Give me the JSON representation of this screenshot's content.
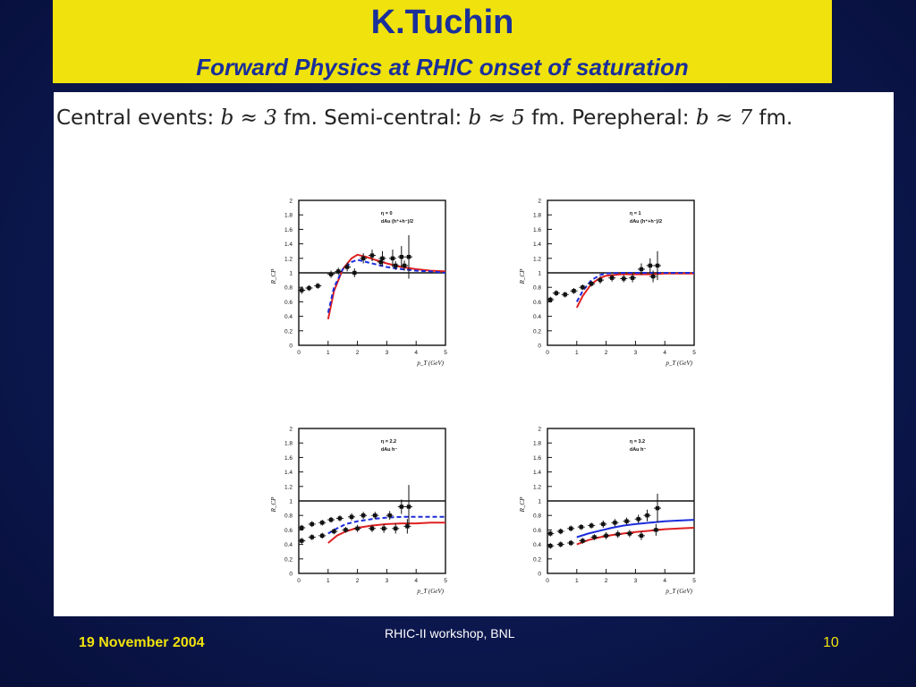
{
  "slide": {
    "title": "K.Tuchin",
    "subtitle": "Forward Physics at RHIC onset of saturation",
    "caption": {
      "p1": "Central events: ",
      "m1": "b ≈ 3",
      "p2": " fm. Semi-central: ",
      "m2": "b ≈ 5",
      "p3": " fm. Perepheral: ",
      "m3": "b ≈ 7",
      "p4": " fm."
    },
    "footer": {
      "date": "19 November 2004",
      "center": "RHIC-II workshop, BNL",
      "page": "10"
    }
  },
  "colors": {
    "title_bg": "#f0e20c",
    "title_text": "#1a2f9a",
    "footer_text": "#f0e20c",
    "background": "#0c1850",
    "red_curve": "#e02020",
    "blue_curve": "#1c2cdc"
  },
  "chart_data": [
    {
      "type": "scatter",
      "panel": "top-left",
      "legend": [
        "η = 0",
        "dAu (h⁺+h⁻)/2"
      ],
      "ylabel": "R_CP",
      "xlabel": "p_T (GeV)",
      "xlim": [
        0,
        5
      ],
      "ylim": [
        0,
        2
      ],
      "xticks": [
        0,
        1,
        2,
        3,
        4,
        5
      ],
      "yticks": [
        0,
        0.2,
        0.4,
        0.6,
        0.8,
        1,
        1.2,
        1.4,
        1.6,
        1.8,
        2
      ],
      "reference_line": 1,
      "curves": [
        {
          "color": "red",
          "dashed": false,
          "x": [
            1.0,
            1.2,
            1.5,
            1.8,
            2.0,
            2.3,
            2.6,
            3.0,
            3.5,
            4.0,
            4.5,
            5.0
          ],
          "y": [
            0.36,
            0.75,
            1.05,
            1.2,
            1.25,
            1.22,
            1.18,
            1.13,
            1.08,
            1.05,
            1.03,
            1.02
          ]
        },
        {
          "color": "blue",
          "dashed": true,
          "x": [
            1.0,
            1.2,
            1.5,
            1.8,
            2.0,
            2.3,
            2.6,
            3.0,
            3.5,
            4.0,
            4.5,
            5.0
          ],
          "y": [
            0.45,
            0.8,
            1.05,
            1.15,
            1.18,
            1.15,
            1.12,
            1.08,
            1.05,
            1.03,
            1.02,
            1.0
          ]
        }
      ],
      "points": [
        {
          "x": 0.1,
          "y": 0.76,
          "err": 0.05
        },
        {
          "x": 0.35,
          "y": 0.79,
          "err": 0.04
        },
        {
          "x": 0.65,
          "y": 0.82,
          "err": 0.04
        },
        {
          "x": 1.1,
          "y": 0.98,
          "err": 0.05
        },
        {
          "x": 1.35,
          "y": 1.02,
          "err": 0.05
        },
        {
          "x": 1.65,
          "y": 1.08,
          "err": 0.06
        },
        {
          "x": 1.9,
          "y": 1.0,
          "err": 0.06
        },
        {
          "x": 2.2,
          "y": 1.2,
          "err": 0.07
        },
        {
          "x": 2.5,
          "y": 1.24,
          "err": 0.08
        },
        {
          "x": 2.85,
          "y": 1.2,
          "err": 0.1
        },
        {
          "x": 3.2,
          "y": 1.2,
          "err": 0.12
        },
        {
          "x": 3.5,
          "y": 1.22,
          "err": 0.15
        },
        {
          "x": 3.75,
          "y": 1.22,
          "err": 0.3
        },
        {
          "x": 2.8,
          "y": 1.15,
          "err": 0.06
        },
        {
          "x": 3.3,
          "y": 1.1,
          "err": 0.06
        },
        {
          "x": 3.6,
          "y": 1.1,
          "err": 0.07
        }
      ]
    },
    {
      "type": "scatter",
      "panel": "top-right",
      "legend": [
        "η = 1",
        "dAu (h⁺+h⁻)/2"
      ],
      "ylabel": "R_CP",
      "xlabel": "p_T (GeV)",
      "xlim": [
        0,
        5
      ],
      "ylim": [
        0,
        2
      ],
      "xticks": [
        0,
        1,
        2,
        3,
        4,
        5
      ],
      "yticks": [
        0,
        0.2,
        0.4,
        0.6,
        0.8,
        1,
        1.2,
        1.4,
        1.6,
        1.8,
        2
      ],
      "reference_line": 1,
      "curves": [
        {
          "color": "red",
          "dashed": false,
          "x": [
            1.0,
            1.2,
            1.5,
            1.8,
            2.0,
            2.5,
            3.0,
            3.5,
            4.0,
            4.5,
            5.0
          ],
          "y": [
            0.52,
            0.68,
            0.85,
            0.93,
            0.96,
            0.98,
            0.98,
            0.98,
            0.99,
            0.99,
            0.99
          ]
        },
        {
          "color": "blue",
          "dashed": true,
          "x": [
            1.0,
            1.2,
            1.5,
            1.8,
            2.0,
            2.5,
            3.0,
            3.5,
            4.0,
            4.5,
            5.0
          ],
          "y": [
            0.6,
            0.75,
            0.9,
            0.97,
            0.99,
            1.0,
            1.0,
            1.0,
            1.0,
            1.0,
            1.0
          ]
        }
      ],
      "points": [
        {
          "x": 0.1,
          "y": 0.63,
          "err": 0.04
        },
        {
          "x": 0.3,
          "y": 0.72,
          "err": 0.04
        },
        {
          "x": 0.6,
          "y": 0.7,
          "err": 0.04
        },
        {
          "x": 0.9,
          "y": 0.75,
          "err": 0.04
        },
        {
          "x": 1.2,
          "y": 0.8,
          "err": 0.04
        },
        {
          "x": 1.5,
          "y": 0.85,
          "err": 0.04
        },
        {
          "x": 1.8,
          "y": 0.9,
          "err": 0.05
        },
        {
          "x": 2.2,
          "y": 0.93,
          "err": 0.05
        },
        {
          "x": 2.6,
          "y": 0.92,
          "err": 0.05
        },
        {
          "x": 2.9,
          "y": 0.93,
          "err": 0.06
        },
        {
          "x": 3.2,
          "y": 1.05,
          "err": 0.08
        },
        {
          "x": 3.5,
          "y": 1.1,
          "err": 0.1
        },
        {
          "x": 3.75,
          "y": 1.1,
          "err": 0.2
        },
        {
          "x": 3.6,
          "y": 0.95,
          "err": 0.08
        }
      ]
    },
    {
      "type": "scatter",
      "panel": "bottom-left",
      "legend": [
        "η = 2.2",
        "dAu h⁻"
      ],
      "ylabel": "R_CP",
      "xlabel": "p_T (GeV)",
      "xlim": [
        0,
        5
      ],
      "ylim": [
        0,
        2
      ],
      "xticks": [
        0,
        1,
        2,
        3,
        4,
        5
      ],
      "yticks": [
        0,
        0.2,
        0.4,
        0.6,
        0.8,
        1,
        1.2,
        1.4,
        1.6,
        1.8,
        2
      ],
      "reference_line": 1,
      "curves": [
        {
          "color": "red",
          "dashed": false,
          "x": [
            1.0,
            1.3,
            1.6,
            2.0,
            2.5,
            3.0,
            3.5,
            4.0,
            4.5,
            5.0
          ],
          "y": [
            0.42,
            0.52,
            0.58,
            0.63,
            0.66,
            0.68,
            0.69,
            0.69,
            0.7,
            0.7
          ]
        },
        {
          "color": "blue",
          "dashed": true,
          "x": [
            1.0,
            1.3,
            1.6,
            2.0,
            2.5,
            3.0,
            3.5,
            4.0,
            4.5,
            5.0
          ],
          "y": [
            0.55,
            0.62,
            0.68,
            0.72,
            0.75,
            0.77,
            0.78,
            0.78,
            0.78,
            0.78
          ]
        }
      ],
      "points": [
        {
          "x": 0.1,
          "y": 0.63,
          "err": 0.04
        },
        {
          "x": 0.45,
          "y": 0.68,
          "err": 0.04
        },
        {
          "x": 0.8,
          "y": 0.7,
          "err": 0.04
        },
        {
          "x": 1.1,
          "y": 0.74,
          "err": 0.04
        },
        {
          "x": 1.4,
          "y": 0.76,
          "err": 0.04
        },
        {
          "x": 1.8,
          "y": 0.78,
          "err": 0.05
        },
        {
          "x": 2.2,
          "y": 0.8,
          "err": 0.05
        },
        {
          "x": 2.6,
          "y": 0.8,
          "err": 0.05
        },
        {
          "x": 3.1,
          "y": 0.8,
          "err": 0.06
        },
        {
          "x": 3.5,
          "y": 0.92,
          "err": 0.1
        },
        {
          "x": 3.75,
          "y": 0.92,
          "err": 0.3
        },
        {
          "x": 0.1,
          "y": 0.45,
          "err": 0.04
        },
        {
          "x": 0.45,
          "y": 0.5,
          "err": 0.04
        },
        {
          "x": 0.8,
          "y": 0.52,
          "err": 0.04
        },
        {
          "x": 1.2,
          "y": 0.58,
          "err": 0.04
        },
        {
          "x": 1.6,
          "y": 0.6,
          "err": 0.04
        },
        {
          "x": 2.0,
          "y": 0.62,
          "err": 0.05
        },
        {
          "x": 2.5,
          "y": 0.62,
          "err": 0.05
        },
        {
          "x": 2.9,
          "y": 0.62,
          "err": 0.06
        },
        {
          "x": 3.3,
          "y": 0.62,
          "err": 0.07
        },
        {
          "x": 3.7,
          "y": 0.65,
          "err": 0.1
        }
      ]
    },
    {
      "type": "scatter",
      "panel": "bottom-right",
      "legend": [
        "η = 3.2",
        "dAu h⁻"
      ],
      "ylabel": "R_CP",
      "xlabel": "p_T (GeV)",
      "xlim": [
        0,
        5
      ],
      "ylim": [
        0,
        2
      ],
      "xticks": [
        0,
        1,
        2,
        3,
        4,
        5
      ],
      "yticks": [
        0,
        0.2,
        0.4,
        0.6,
        0.8,
        1,
        1.2,
        1.4,
        1.6,
        1.8,
        2
      ],
      "reference_line": 1,
      "curves": [
        {
          "color": "red",
          "dashed": false,
          "x": [
            1.0,
            1.4,
            1.8,
            2.2,
            2.6,
            3.0,
            3.5,
            4.0,
            4.5,
            5.0
          ],
          "y": [
            0.4,
            0.46,
            0.5,
            0.53,
            0.55,
            0.57,
            0.59,
            0.61,
            0.62,
            0.63
          ]
        },
        {
          "color": "blue",
          "dashed": false,
          "x": [
            1.0,
            1.4,
            1.8,
            2.2,
            2.6,
            3.0,
            3.5,
            4.0,
            4.5,
            5.0
          ],
          "y": [
            0.5,
            0.55,
            0.59,
            0.63,
            0.66,
            0.68,
            0.7,
            0.72,
            0.73,
            0.74
          ]
        }
      ],
      "points": [
        {
          "x": 0.1,
          "y": 0.55,
          "err": 0.04
        },
        {
          "x": 0.45,
          "y": 0.58,
          "err": 0.04
        },
        {
          "x": 0.8,
          "y": 0.62,
          "err": 0.04
        },
        {
          "x": 1.15,
          "y": 0.64,
          "err": 0.04
        },
        {
          "x": 1.5,
          "y": 0.66,
          "err": 0.04
        },
        {
          "x": 1.9,
          "y": 0.68,
          "err": 0.05
        },
        {
          "x": 2.3,
          "y": 0.7,
          "err": 0.05
        },
        {
          "x": 2.7,
          "y": 0.72,
          "err": 0.05
        },
        {
          "x": 3.1,
          "y": 0.75,
          "err": 0.06
        },
        {
          "x": 3.4,
          "y": 0.8,
          "err": 0.08
        },
        {
          "x": 3.75,
          "y": 0.9,
          "err": 0.2
        },
        {
          "x": 0.1,
          "y": 0.38,
          "err": 0.04
        },
        {
          "x": 0.45,
          "y": 0.4,
          "err": 0.04
        },
        {
          "x": 0.8,
          "y": 0.42,
          "err": 0.04
        },
        {
          "x": 1.2,
          "y": 0.45,
          "err": 0.04
        },
        {
          "x": 1.6,
          "y": 0.5,
          "err": 0.04
        },
        {
          "x": 2.0,
          "y": 0.52,
          "err": 0.05
        },
        {
          "x": 2.4,
          "y": 0.54,
          "err": 0.05
        },
        {
          "x": 2.8,
          "y": 0.55,
          "err": 0.05
        },
        {
          "x": 3.2,
          "y": 0.52,
          "err": 0.06
        },
        {
          "x": 3.7,
          "y": 0.6,
          "err": 0.08
        }
      ]
    }
  ]
}
